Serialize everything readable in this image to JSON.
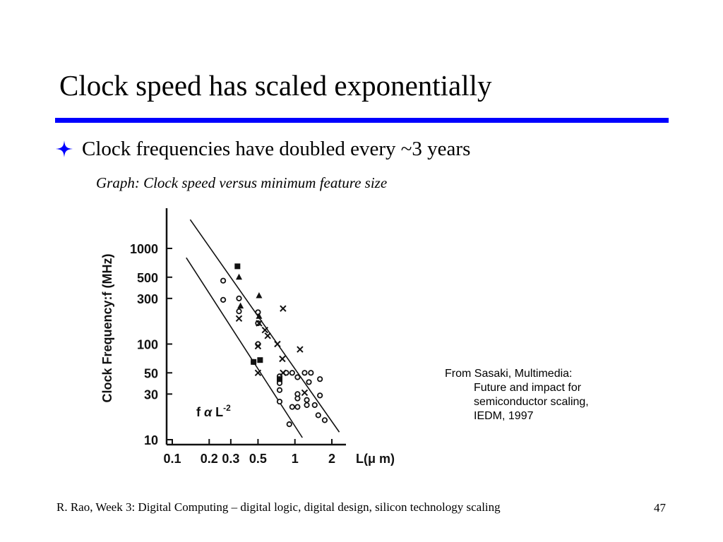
{
  "slide": {
    "title": "Clock speed has scaled exponentially",
    "bullet": "Clock frequencies have doubled every ~3 years",
    "caption": "Graph: Clock speed versus minimum feature size",
    "citation": {
      "lines": [
        "From Sasaki, Multimedia:",
        "Future and impact for",
        "semiconductor scaling,",
        "IEDM, 1997"
      ]
    },
    "footer": "R. Rao, Week 3: Digital Computing – digital logic, digital design, silicon technology scaling",
    "page_number": "47"
  },
  "colors": {
    "accent_rule": "#0000ff",
    "bullet_icon": "#0000ff",
    "text": "#000000"
  },
  "icons": {
    "bullet": "four-point-star-icon"
  },
  "chart_data": {
    "type": "scatter",
    "title": "",
    "xlabel": "L(μ m)",
    "ylabel": "Clock Frequency:f (MHz)",
    "xscale": "log",
    "yscale": "log",
    "xlim": [
      0.08,
      2.6
    ],
    "ylim": [
      9,
      2500
    ],
    "x_ticks": [
      0.1,
      0.2,
      0.3,
      0.5,
      1,
      2
    ],
    "x_tick_labels": [
      "0.1",
      "0.2",
      "0.3",
      "0.5",
      "1",
      "2"
    ],
    "y_ticks": [
      10,
      30,
      50,
      100,
      300,
      500,
      1000
    ],
    "y_tick_labels": [
      "10",
      "30",
      "50",
      "100",
      "300",
      "500",
      "1000"
    ],
    "grid": false,
    "annotation": {
      "prefix": "f",
      "symbol": "α",
      "base": "L",
      "exponent": "-2"
    },
    "trend_lines": [
      {
        "x": [
          0.14,
          2.3
        ],
        "y": [
          2000,
          12
        ]
      },
      {
        "x": [
          0.13,
          1.15
        ],
        "y": [
          800,
          10.5
        ]
      }
    ],
    "series": [
      {
        "marker": "circle",
        "points": [
          [
            0.26,
            460
          ],
          [
            0.26,
            290
          ],
          [
            0.35,
            300
          ],
          [
            0.35,
            220
          ],
          [
            0.5,
            215
          ],
          [
            0.5,
            165
          ],
          [
            0.5,
            100
          ],
          [
            0.46,
            65
          ],
          [
            0.75,
            46
          ],
          [
            0.75,
            39
          ],
          [
            0.75,
            33
          ],
          [
            0.75,
            25
          ],
          [
            0.85,
            50
          ],
          [
            0.95,
            50
          ],
          [
            1.05,
            45
          ],
          [
            1.2,
            50
          ],
          [
            1.35,
            50
          ],
          [
            1.3,
            40
          ],
          [
            1.6,
            43
          ],
          [
            1.6,
            29
          ],
          [
            1.05,
            27
          ],
          [
            1.05,
            22
          ],
          [
            1.25,
            26
          ],
          [
            1.25,
            23
          ],
          [
            1.45,
            23
          ],
          [
            1.55,
            18
          ],
          [
            1.75,
            16
          ],
          [
            0.95,
            22
          ],
          [
            1.05,
            30
          ],
          [
            0.9,
            14.5
          ]
        ]
      },
      {
        "marker": "triangle",
        "points": [
          [
            0.35,
            500
          ],
          [
            0.36,
            250
          ],
          [
            0.51,
            320
          ],
          [
            0.51,
            195
          ]
        ]
      },
      {
        "marker": "square",
        "points": [
          [
            0.34,
            650
          ],
          [
            0.46,
            65
          ],
          [
            0.52,
            68
          ],
          [
            0.75,
            43
          ]
        ]
      },
      {
        "marker": "x",
        "points": [
          [
            0.35,
            185
          ],
          [
            0.51,
            165
          ],
          [
            0.57,
            140
          ],
          [
            0.6,
            122
          ],
          [
            0.5,
            95
          ],
          [
            0.72,
            100
          ],
          [
            0.8,
            235
          ],
          [
            0.79,
            70
          ],
          [
            1.1,
            88
          ],
          [
            0.5,
            50
          ],
          [
            1.2,
            31
          ],
          [
            0.8,
            50
          ]
        ]
      }
    ]
  }
}
